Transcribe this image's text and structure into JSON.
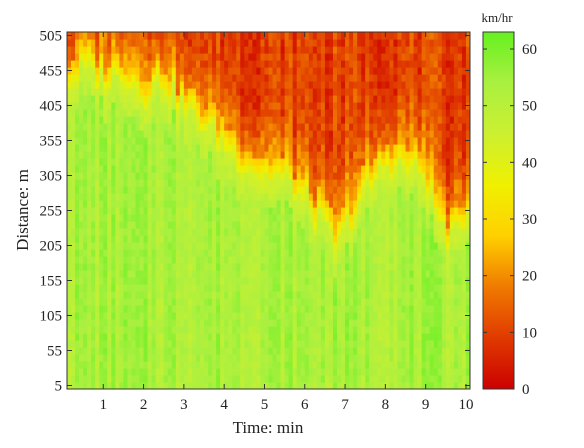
{
  "chart_data": {
    "type": "heatmap",
    "title": "",
    "xlabel": "Time: min",
    "ylabel": "Distance: m",
    "xlim": [
      0.1,
      10.1
    ],
    "ylim": [
      0,
      510
    ],
    "x_ticks": [
      1,
      2,
      3,
      4,
      5,
      6,
      7,
      8,
      9,
      10
    ],
    "y_ticks": [
      5,
      55,
      105,
      155,
      205,
      255,
      305,
      355,
      405,
      455,
      505
    ],
    "colorbar": {
      "label": "km/hr",
      "range": [
        0,
        63
      ],
      "ticks": [
        0,
        10,
        20,
        30,
        40,
        50,
        60
      ],
      "colors": [
        "#cc0000",
        "#e03a00",
        "#f07a00",
        "#ffd000",
        "#f0f000",
        "#ccf030",
        "#aaf040",
        "#66f020"
      ]
    },
    "grid": false,
    "congestion_boundary_m": {
      "time_min": [
        0.2,
        0.5,
        1.0,
        1.5,
        2.0,
        2.5,
        3.0,
        3.5,
        4.0,
        4.5,
        5.0,
        5.5,
        6.0,
        6.5,
        6.8,
        7.0,
        7.5,
        8.0,
        8.5,
        9.0,
        9.4,
        9.7,
        10.0
      ],
      "distance_m": [
        440,
        460,
        440,
        450,
        420,
        440,
        400,
        380,
        350,
        320,
        305,
        300,
        270,
        230,
        200,
        230,
        280,
        320,
        320,
        300,
        230,
        210,
        250
      ]
    }
  }
}
